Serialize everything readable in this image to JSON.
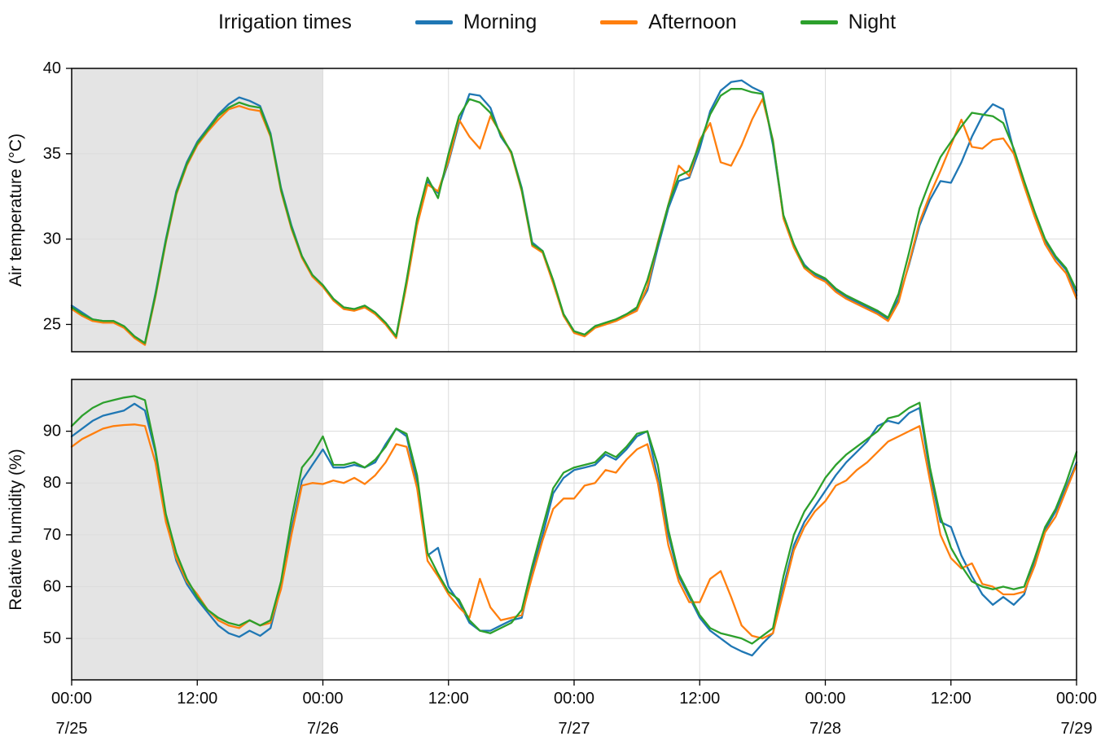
{
  "legend": {
    "title": "Irrigation times",
    "series": [
      {
        "label": "Morning",
        "color": "#1f77b4"
      },
      {
        "label": "Afternoon",
        "color": "#ff7f0e"
      },
      {
        "label": "Night",
        "color": "#2ca02c"
      }
    ]
  },
  "shading": {
    "from_hour": 0,
    "to_hour": 24,
    "color": "#e4e4e4"
  },
  "x_axis": {
    "range_hours": [
      0,
      96
    ],
    "tick_hours": [
      0,
      12,
      24,
      36,
      48,
      60,
      72,
      84,
      96
    ],
    "tick_labels": [
      "00:00",
      "12:00",
      "00:00",
      "12:00",
      "00:00",
      "12:00",
      "00:00",
      "12:00",
      "00:00"
    ],
    "date_labels": [
      {
        "hour": 0,
        "label": "7/25"
      },
      {
        "hour": 24,
        "label": "7/26"
      },
      {
        "hour": 48,
        "label": "7/27"
      },
      {
        "hour": 72,
        "label": "7/28"
      },
      {
        "hour": 96,
        "label": "7/29"
      }
    ]
  },
  "x_hours": [
    0,
    1,
    2,
    3,
    4,
    5,
    6,
    7,
    8,
    9,
    10,
    11,
    12,
    13,
    14,
    15,
    16,
    17,
    18,
    19,
    20,
    21,
    22,
    23,
    24,
    25,
    26,
    27,
    28,
    29,
    30,
    31,
    32,
    33,
    34,
    35,
    36,
    37,
    38,
    39,
    40,
    41,
    42,
    43,
    44,
    45,
    46,
    47,
    48,
    49,
    50,
    51,
    52,
    53,
    54,
    55,
    56,
    57,
    58,
    59,
    60,
    61,
    62,
    63,
    64,
    65,
    66,
    67,
    68,
    69,
    70,
    71,
    72,
    73,
    74,
    75,
    76,
    77,
    78,
    79,
    80,
    81,
    82,
    83,
    84,
    85,
    86,
    87,
    88,
    89,
    90,
    91,
    92,
    93,
    94,
    95,
    96
  ],
  "chart_data": [
    {
      "type": "line",
      "id": "air_temperature",
      "title": "",
      "xlabel": "",
      "ylabel": "Air temperature (°C)",
      "ylim": [
        23.4,
        40
      ],
      "yticks": [
        25,
        30,
        35,
        40
      ],
      "grid": true,
      "legend_position": "top",
      "series": [
        {
          "name": "Morning",
          "color": "#1f77b4",
          "values": [
            26.1,
            25.7,
            25.3,
            25.2,
            25.2,
            24.9,
            24.3,
            23.9,
            26.8,
            30.0,
            32.8,
            34.5,
            35.7,
            36.5,
            37.3,
            37.9,
            38.3,
            38.1,
            37.8,
            36.2,
            33.0,
            30.8,
            29.0,
            27.9,
            27.3,
            26.5,
            26.0,
            25.9,
            26.1,
            25.7,
            25.1,
            24.3,
            27.5,
            31.0,
            33.4,
            32.7,
            34.5,
            36.8,
            38.5,
            38.4,
            37.7,
            36.0,
            35.1,
            33.0,
            29.8,
            29.3,
            27.5,
            25.6,
            24.6,
            24.4,
            24.9,
            25.1,
            25.3,
            25.6,
            25.9,
            27.0,
            29.5,
            31.8,
            33.4,
            33.6,
            35.3,
            37.5,
            38.7,
            39.2,
            39.3,
            38.9,
            38.6,
            35.5,
            31.3,
            29.6,
            28.5,
            27.9,
            27.6,
            27.0,
            26.6,
            26.3,
            26.0,
            25.7,
            25.3,
            26.5,
            28.5,
            30.8,
            32.3,
            33.4,
            33.3,
            34.5,
            36.0,
            37.2,
            37.9,
            37.6,
            35.2,
            33.3,
            31.5,
            29.9,
            28.9,
            28.2,
            26.7
          ]
        },
        {
          "name": "Afternoon",
          "color": "#ff7f0e",
          "values": [
            25.9,
            25.5,
            25.2,
            25.1,
            25.1,
            24.8,
            24.2,
            23.8,
            26.6,
            29.8,
            32.6,
            34.3,
            35.5,
            36.3,
            37.0,
            37.6,
            37.8,
            37.6,
            37.5,
            36.0,
            32.8,
            30.6,
            28.9,
            27.8,
            27.2,
            26.4,
            25.9,
            25.8,
            26.0,
            25.6,
            25.0,
            24.2,
            27.3,
            30.8,
            33.2,
            32.8,
            34.6,
            37.0,
            36.0,
            35.3,
            37.2,
            36.2,
            35.0,
            32.8,
            29.6,
            29.2,
            27.4,
            25.5,
            24.5,
            24.3,
            24.8,
            25.0,
            25.2,
            25.5,
            25.8,
            27.2,
            29.8,
            32.0,
            34.3,
            33.7,
            35.8,
            36.8,
            34.5,
            34.3,
            35.5,
            37.0,
            38.2,
            35.8,
            31.2,
            29.5,
            28.3,
            27.8,
            27.5,
            26.9,
            26.5,
            26.2,
            25.9,
            25.6,
            25.2,
            26.3,
            28.6,
            31.0,
            32.6,
            34.0,
            35.5,
            37.0,
            35.4,
            35.3,
            35.8,
            35.9,
            35.0,
            33.1,
            31.3,
            29.7,
            28.7,
            28.0,
            26.5
          ]
        },
        {
          "name": "Night",
          "color": "#2ca02c",
          "values": [
            26.0,
            25.6,
            25.3,
            25.2,
            25.2,
            24.9,
            24.3,
            23.9,
            26.7,
            29.9,
            32.7,
            34.4,
            35.6,
            36.4,
            37.2,
            37.7,
            38.0,
            37.8,
            37.7,
            36.1,
            32.9,
            30.7,
            29.0,
            27.9,
            27.3,
            26.5,
            26.0,
            25.9,
            26.1,
            25.7,
            25.1,
            24.3,
            27.6,
            31.2,
            33.6,
            32.4,
            35.0,
            37.2,
            38.2,
            38.0,
            37.4,
            36.1,
            35.1,
            32.9,
            29.7,
            29.3,
            27.6,
            25.6,
            24.6,
            24.4,
            24.9,
            25.1,
            25.3,
            25.6,
            26.0,
            27.6,
            29.7,
            32.0,
            33.7,
            34.0,
            35.6,
            37.3,
            38.4,
            38.8,
            38.8,
            38.6,
            38.5,
            35.7,
            31.4,
            29.7,
            28.4,
            28.0,
            27.7,
            27.1,
            26.7,
            26.4,
            26.1,
            25.8,
            25.4,
            26.8,
            29.2,
            31.8,
            33.4,
            34.8,
            35.7,
            36.6,
            37.4,
            37.3,
            37.2,
            36.8,
            35.3,
            33.4,
            31.6,
            30.0,
            29.0,
            28.3,
            27.0
          ]
        }
      ]
    },
    {
      "type": "line",
      "id": "relative_humidity",
      "title": "",
      "xlabel": "",
      "ylabel": "Relative humidity (%)",
      "ylim": [
        42,
        100
      ],
      "yticks": [
        50,
        60,
        70,
        80,
        90
      ],
      "grid": true,
      "legend_position": "top",
      "series": [
        {
          "name": "Morning",
          "color": "#1f77b4",
          "values": [
            89.0,
            90.5,
            92.0,
            93.0,
            93.5,
            94.0,
            95.3,
            94.0,
            86.0,
            73.0,
            65.0,
            60.5,
            57.5,
            55.0,
            52.5,
            51.0,
            50.3,
            51.5,
            50.5,
            52.0,
            60.0,
            71.0,
            80.5,
            83.5,
            86.5,
            83.0,
            83.0,
            83.5,
            83.0,
            84.0,
            87.5,
            90.5,
            89.0,
            80.0,
            66.0,
            67.5,
            60.0,
            57.0,
            53.0,
            51.5,
            51.5,
            52.5,
            53.5,
            54.0,
            63.0,
            70.0,
            78.0,
            81.0,
            82.5,
            83.0,
            83.5,
            85.5,
            84.5,
            86.5,
            89.0,
            90.0,
            81.0,
            70.0,
            62.0,
            58.0,
            54.0,
            51.5,
            50.0,
            48.5,
            47.5,
            46.7,
            49.0,
            51.0,
            60.0,
            68.0,
            72.5,
            75.5,
            78.5,
            81.5,
            84.0,
            86.0,
            88.0,
            91.0,
            92.0,
            91.5,
            93.5,
            94.5,
            82.0,
            72.5,
            71.5,
            66.0,
            62.0,
            58.5,
            56.5,
            58.0,
            56.5,
            58.5,
            65.0,
            71.0,
            74.5,
            79.0,
            84.0
          ]
        },
        {
          "name": "Afternoon",
          "color": "#ff7f0e",
          "values": [
            87.0,
            88.5,
            89.5,
            90.5,
            91.0,
            91.2,
            91.3,
            91.0,
            84.0,
            72.5,
            65.5,
            61.0,
            58.5,
            55.5,
            53.5,
            52.5,
            52.0,
            53.5,
            52.5,
            53.0,
            59.5,
            70.0,
            79.5,
            80.0,
            79.8,
            80.5,
            80.0,
            81.0,
            79.8,
            81.5,
            84.0,
            87.5,
            87.0,
            79.0,
            65.0,
            62.0,
            58.5,
            56.0,
            54.0,
            61.5,
            56.0,
            53.5,
            54.0,
            54.5,
            62.0,
            69.0,
            75.0,
            77.0,
            77.0,
            79.5,
            80.0,
            82.5,
            82.0,
            84.5,
            86.5,
            87.5,
            80.0,
            68.0,
            61.0,
            57.0,
            57.0,
            61.5,
            63.0,
            58.0,
            52.5,
            50.5,
            50.0,
            51.0,
            59.0,
            67.0,
            71.5,
            74.5,
            76.5,
            79.5,
            80.5,
            82.5,
            84.0,
            86.0,
            88.0,
            89.0,
            90.0,
            91.0,
            80.5,
            70.0,
            65.5,
            63.5,
            64.5,
            60.5,
            60.0,
            58.5,
            58.5,
            59.0,
            64.0,
            70.5,
            73.5,
            78.5,
            83.5
          ]
        },
        {
          "name": "Night",
          "color": "#2ca02c",
          "values": [
            91.0,
            93.0,
            94.5,
            95.5,
            96.0,
            96.5,
            96.8,
            96.0,
            86.5,
            74.0,
            66.5,
            61.5,
            58.0,
            55.5,
            54.0,
            53.0,
            52.5,
            53.5,
            52.5,
            53.5,
            61.0,
            73.0,
            83.0,
            85.5,
            89.0,
            83.5,
            83.5,
            84.0,
            83.0,
            84.5,
            87.0,
            90.5,
            89.5,
            81.5,
            66.5,
            62.5,
            59.0,
            57.5,
            53.5,
            51.5,
            51.0,
            52.0,
            53.0,
            55.5,
            64.0,
            71.5,
            79.0,
            82.0,
            83.0,
            83.5,
            84.0,
            86.0,
            85.0,
            87.0,
            89.5,
            90.0,
            83.5,
            71.0,
            62.5,
            58.5,
            54.5,
            52.0,
            51.0,
            50.5,
            50.0,
            49.0,
            50.5,
            52.0,
            62.0,
            70.0,
            74.5,
            77.5,
            81.0,
            83.5,
            85.5,
            87.0,
            88.5,
            90.0,
            92.5,
            93.0,
            94.5,
            95.5,
            83.0,
            73.5,
            67.5,
            64.0,
            61.0,
            60.0,
            59.5,
            60.0,
            59.5,
            60.0,
            65.5,
            71.5,
            75.0,
            80.0,
            86.0
          ]
        }
      ]
    }
  ]
}
